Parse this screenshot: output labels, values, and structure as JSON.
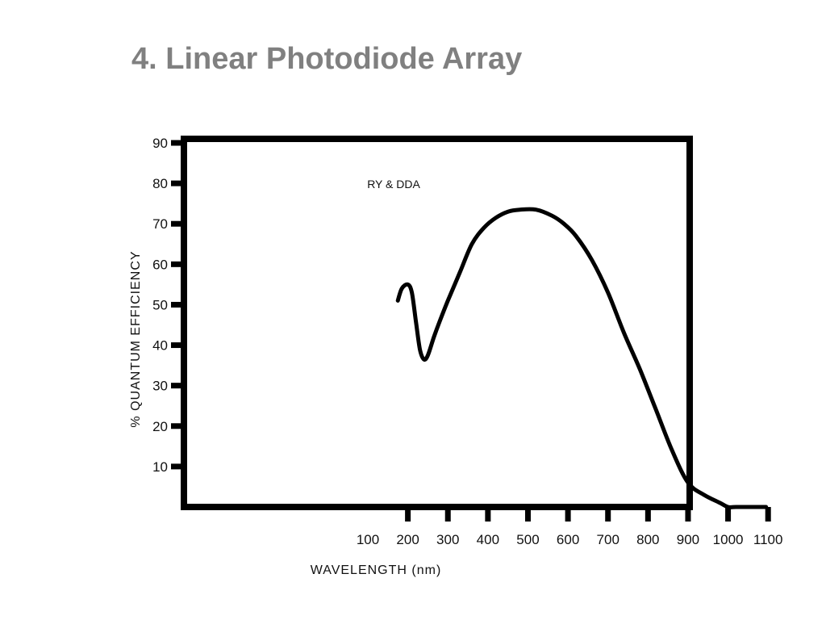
{
  "slide": {
    "title": "4.  Linear Photodiode Array"
  },
  "chart_data": {
    "type": "line",
    "title": "",
    "xlabel": "WAVELENGTH (nm)",
    "ylabel": "% QUANTUM EFFICIENCY",
    "x_ticks": [
      100,
      200,
      300,
      400,
      500,
      600,
      700,
      800,
      900,
      1000,
      1100
    ],
    "y_ticks": [
      10,
      20,
      30,
      40,
      50,
      60,
      70,
      80,
      90
    ],
    "xlim": [
      100,
      1100
    ],
    "ylim": [
      0,
      90
    ],
    "grid": false,
    "annotation": "RY & DDA",
    "series": [
      {
        "name": "",
        "color": "#000000",
        "x": [
          175,
          185,
          200,
          210,
          220,
          230,
          240,
          250,
          265,
          280,
          300,
          330,
          360,
          390,
          420,
          450,
          480,
          520,
          560,
          590,
          620,
          660,
          700,
          740,
          780,
          820,
          860,
          900,
          940,
          980,
          1000,
          1020,
          1040,
          1060,
          1080,
          1095
        ],
        "y": [
          51,
          54,
          55,
          53,
          46,
          39,
          36.5,
          37.5,
          42,
          46,
          51,
          58,
          65,
          69,
          71.5,
          73,
          73.5,
          73.5,
          72,
          70,
          67,
          61,
          53,
          43,
          34,
          24,
          14,
          6,
          3,
          1,
          0,
          0,
          0,
          0,
          0,
          0
        ]
      }
    ]
  }
}
